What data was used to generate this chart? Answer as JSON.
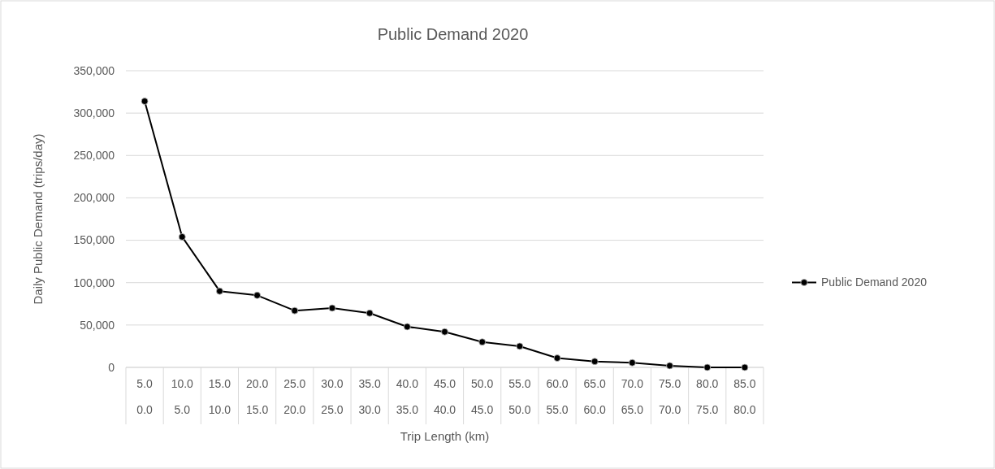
{
  "chart_data": {
    "type": "line",
    "title": "Public Demand 2020",
    "xlabel": "Trip Length (km)",
    "ylabel": "Daily Public Demand (trips/day)",
    "categories": [
      "5.0\n0.0",
      "10.0\n5.0",
      "15.0\n10.0",
      "20.0\n15.0",
      "25.0\n20.0",
      "30.0\n25.0",
      "35.0\n30.0",
      "40.0\n35.0",
      "45.0\n40.0",
      "50.0\n45.0",
      "55.0\n50.0",
      "60.0\n55.0",
      "65.0\n60.0",
      "70.0\n65.0",
      "75.0\n70.0",
      "80.0\n75.0",
      "85.0\n80.0"
    ],
    "series": [
      {
        "name": "Public Demand 2020",
        "color": "#000000",
        "values": [
          314000,
          154000,
          90000,
          85000,
          67000,
          70000,
          64000,
          48000,
          42000,
          30000,
          25000,
          11000,
          7000,
          5500,
          2000,
          0,
          0
        ]
      }
    ],
    "ylim": [
      0,
      350000
    ],
    "yticks": [
      {
        "value": 0,
        "label": "0"
      },
      {
        "value": 50000,
        "label": "50,000"
      },
      {
        "value": 100000,
        "label": "100,000"
      },
      {
        "value": 150000,
        "label": "150,000"
      },
      {
        "value": 200000,
        "label": "200,000"
      },
      {
        "value": 250000,
        "label": "250,000"
      },
      {
        "value": 300000,
        "label": "300,000"
      },
      {
        "value": 350000,
        "label": "350,000"
      }
    ],
    "grid": "y",
    "legend": "right",
    "marker": "circle",
    "line_style": "solid"
  }
}
